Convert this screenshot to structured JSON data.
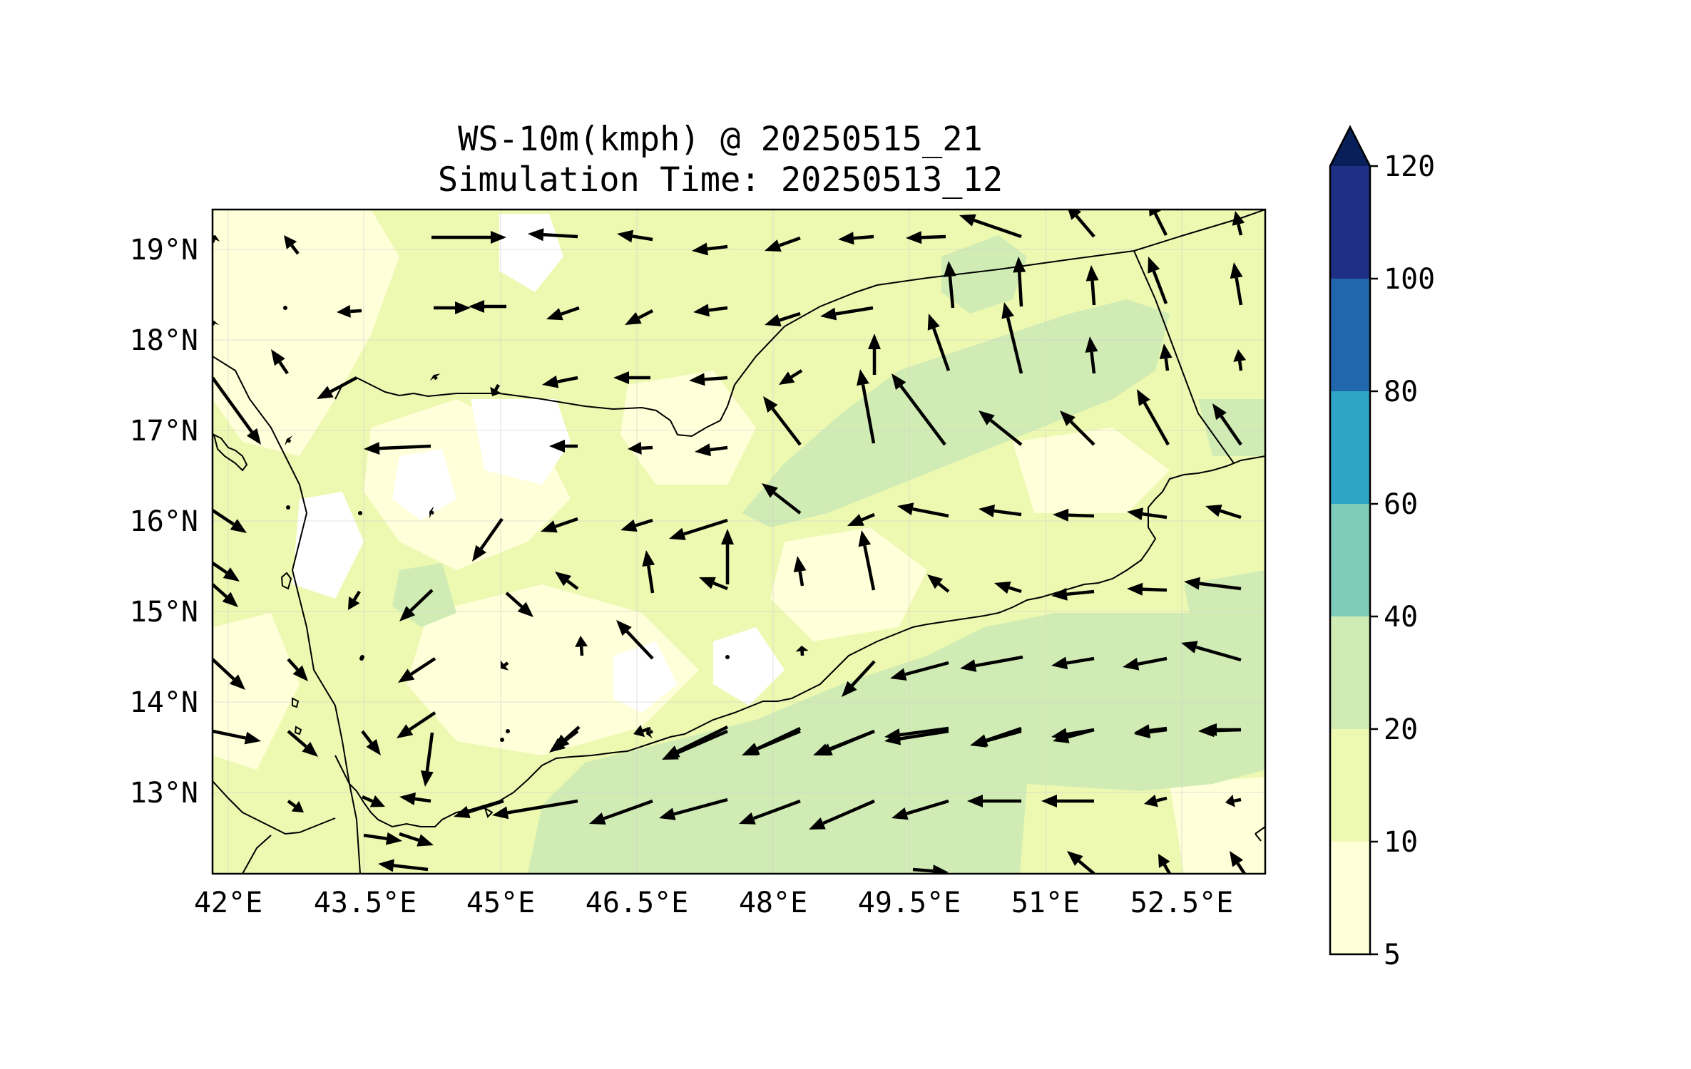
{
  "title": {
    "line1": "WS-10m(kmph) @ 20250515_21",
    "line2": "Simulation Time: 20250513_12"
  },
  "x_ticks": [
    "42°E",
    "43.5°E",
    "45°E",
    "46.5°E",
    "48°E",
    "49.5°E",
    "51°E",
    "52.5°E"
  ],
  "y_ticks": [
    "19°N",
    "18°N",
    "17°N",
    "16°N",
    "15°N",
    "14°N",
    "13°N"
  ],
  "colorbar": {
    "levels": [
      "5",
      "10",
      "20",
      "40",
      "60",
      "80",
      "100",
      "120"
    ],
    "colors": [
      "#ffffd9",
      "#edf8b1",
      "#d0ecb4",
      "#7fccba",
      "#2fa5c6",
      "#2167ad",
      "#1e2f85",
      "#091f59"
    ],
    "extend": "max"
  },
  "map_colors": {
    "background": "#edf8b1",
    "light": "#ffffd9",
    "calm": "#ffffff",
    "moderate": "#d0ecb4",
    "coastline": "#000000",
    "arrow": "#000000"
  }
}
